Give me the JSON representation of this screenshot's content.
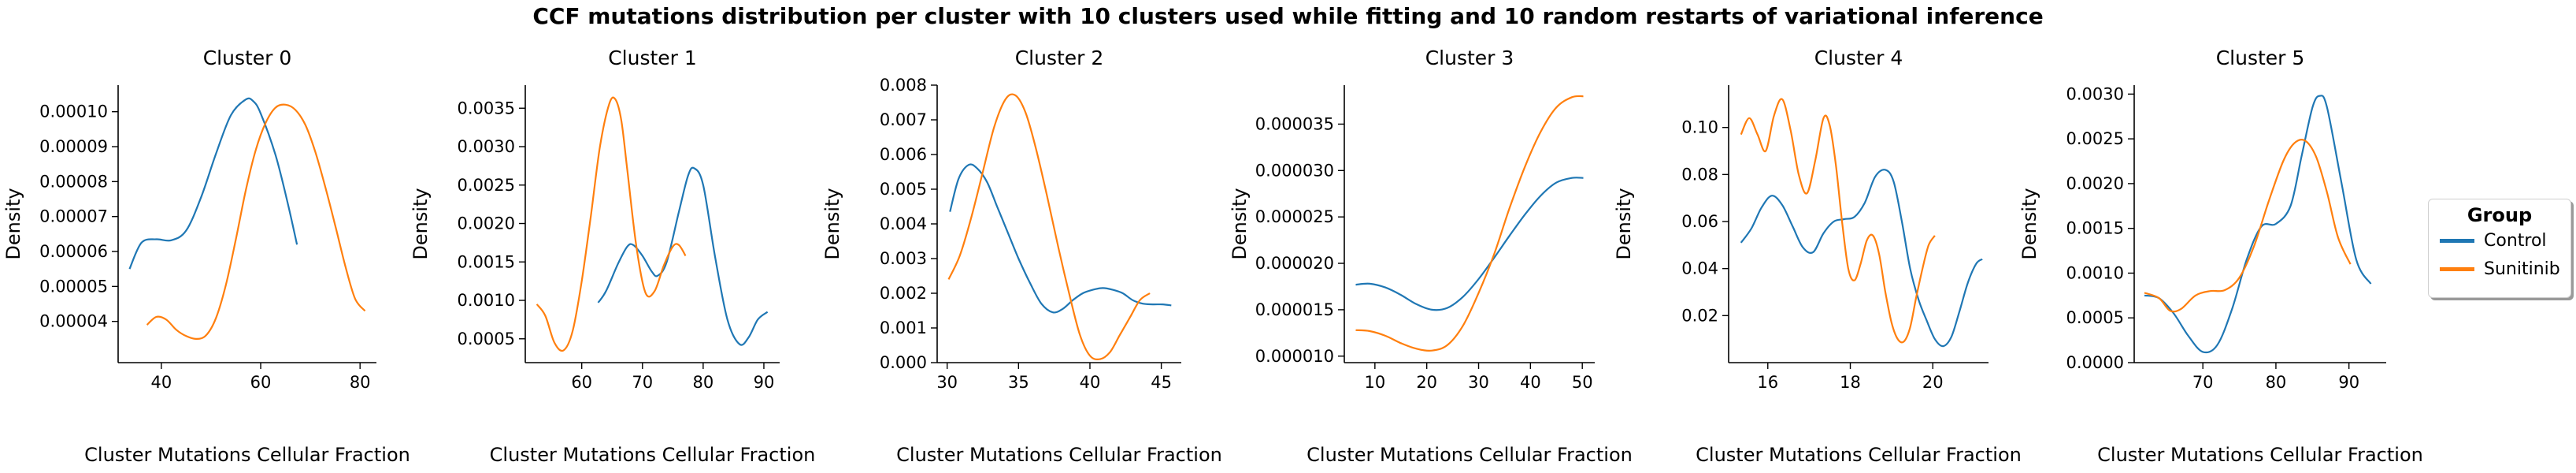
{
  "title": "CCF mutations distribution per cluster with 10 clusters used while fitting and 10 random restarts of variational inference",
  "colors": {
    "control": "#1f77b4",
    "sunitinib": "#ff7f0e"
  },
  "legend": {
    "title": "Group",
    "items": [
      {
        "label": "Control",
        "color": "#1f77b4"
      },
      {
        "label": "Sunitinib",
        "color": "#ff7f0e"
      }
    ]
  },
  "chart_data": [
    {
      "type": "line",
      "title": "Cluster 0",
      "xlabel": "Cluster Mutations Cellular Fraction",
      "ylabel": "Density",
      "xlim": [
        31.3,
        83.3
      ],
      "ylim": [
        2.82e-05,
        0.0001076
      ],
      "xticks": [
        40,
        60,
        80
      ],
      "xtick_labels": [
        "40",
        "60",
        "80"
      ],
      "yticks": [
        4e-05,
        5e-05,
        6e-05,
        7e-05,
        8e-05,
        9e-05,
        0.0001
      ],
      "ytick_labels": [
        "0.00004",
        "0.00005",
        "0.00006",
        "0.00007",
        "0.00008",
        "0.00009",
        "0.00010"
      ],
      "series": [
        {
          "name": "Control",
          "color": "#1f77b4",
          "x": [
            33.6,
            36,
            39,
            42,
            45,
            48,
            51,
            54,
            57,
            58.5,
            60,
            63,
            65.5,
            67.3
          ],
          "y": [
            5.5e-05,
            6.25e-05,
            6.35e-05,
            6.32e-05,
            6.6e-05,
            7.55e-05,
            8.8e-05,
            9.9e-05,
            0.0001035,
            0.000103,
            9.95e-05,
            8.75e-05,
            7.35e-05,
            6.2e-05
          ]
        },
        {
          "name": "Sunitinib",
          "color": "#ff7f0e",
          "x": [
            37.1,
            39,
            41,
            43,
            45,
            47,
            49,
            51,
            53,
            55,
            57,
            59,
            61,
            63,
            65,
            67,
            69,
            71,
            73,
            75,
            77,
            79,
            81
          ],
          "y": [
            3.9e-05,
            4.13e-05,
            4.05e-05,
            3.76e-05,
            3.58e-05,
            3.5e-05,
            3.6e-05,
            4.1e-05,
            5.05e-05,
            6.35e-05,
            7.75e-05,
            8.9e-05,
            9.68e-05,
            0.0001012,
            0.000102,
            0.0001005,
            9.62e-05,
            8.85e-05,
            7.85e-05,
            6.75e-05,
            5.6e-05,
            4.65e-05,
            4.3e-05
          ]
        }
      ]
    },
    {
      "type": "line",
      "title": "Cluster 1",
      "xlabel": "Cluster Mutations Cellular Fraction",
      "ylabel": "Density",
      "xlim": [
        50.7,
        92.6
      ],
      "ylim": [
        0.00019,
        0.0038
      ],
      "xticks": [
        60,
        70,
        80,
        90
      ],
      "xtick_labels": [
        "60",
        "70",
        "80",
        "90"
      ],
      "yticks": [
        0.0005,
        0.001,
        0.0015,
        0.002,
        0.0025,
        0.003,
        0.0035
      ],
      "ytick_labels": [
        "0.0005",
        "0.0010",
        "0.0015",
        "0.0020",
        "0.0025",
        "0.0030",
        "0.0035"
      ],
      "series": [
        {
          "name": "Control",
          "color": "#1f77b4",
          "x": [
            62.7,
            64,
            66,
            67.5,
            68.5,
            70,
            71.5,
            72.5,
            74,
            76,
            77.5,
            78.5,
            80,
            82,
            84,
            86,
            87.5,
            89,
            90.6
          ],
          "y": [
            0.00097,
            0.00112,
            0.00148,
            0.0017,
            0.00172,
            0.00158,
            0.00138,
            0.00132,
            0.0015,
            0.00215,
            0.00262,
            0.00272,
            0.0025,
            0.00155,
            0.00075,
            0.00043,
            0.00052,
            0.00075,
            0.00085
          ]
        },
        {
          "name": "Sunitinib",
          "color": "#ff7f0e",
          "x": [
            52.6,
            54,
            55.5,
            57,
            58.5,
            60,
            61.5,
            63,
            64.5,
            65.5,
            66.5,
            67.5,
            69,
            70.5,
            72,
            73.5,
            75,
            76,
            77.1
          ],
          "y": [
            0.00095,
            0.0008,
            0.00045,
            0.00035,
            0.0006,
            0.00125,
            0.0021,
            0.003,
            0.00355,
            0.00362,
            0.00335,
            0.0027,
            0.0017,
            0.0011,
            0.00112,
            0.00145,
            0.0017,
            0.00172,
            0.00158
          ]
        }
      ]
    },
    {
      "type": "line",
      "title": "Cluster 2",
      "xlabel": "Cluster Mutations Cellular Fraction",
      "ylabel": "Density",
      "xlim": [
        29.3,
        46.4
      ],
      "ylim": [
        0,
        0.008
      ],
      "xticks": [
        30,
        35,
        40,
        45
      ],
      "xtick_labels": [
        "30",
        "35",
        "40",
        "45"
      ],
      "yticks": [
        0,
        0.001,
        0.002,
        0.003,
        0.004,
        0.005,
        0.006,
        0.007,
        0.008
      ],
      "ytick_labels": [
        "0.000",
        "0.001",
        "0.002",
        "0.003",
        "0.004",
        "0.005",
        "0.006",
        "0.007",
        "0.008"
      ],
      "series": [
        {
          "name": "Control",
          "color": "#1f77b4",
          "x": [
            30.2,
            30.8,
            31.5,
            32.1,
            32.8,
            33.5,
            34.2,
            35,
            35.8,
            36.6,
            37.4,
            38.1,
            38.8,
            39.5,
            40.2,
            40.9,
            41.6,
            42.3,
            43,
            43.7,
            44.4,
            45.1,
            45.7
          ],
          "y": [
            0.00435,
            0.0053,
            0.0057,
            0.0056,
            0.0052,
            0.0045,
            0.0038,
            0.003,
            0.0023,
            0.0017,
            0.00145,
            0.00155,
            0.0018,
            0.002,
            0.0021,
            0.00215,
            0.0021,
            0.002,
            0.0018,
            0.0017,
            0.00168,
            0.00168,
            0.00165
          ]
        },
        {
          "name": "Sunitinib",
          "color": "#ff7f0e",
          "x": [
            30.1,
            30.9,
            31.7,
            32.5,
            33.3,
            34.1,
            34.8,
            35.5,
            36.2,
            37,
            37.8,
            38.6,
            39.3,
            40,
            40.7,
            41.4,
            42.1,
            42.8,
            43.5,
            44.2
          ],
          "y": [
            0.0024,
            0.0031,
            0.0042,
            0.0055,
            0.0068,
            0.0076,
            0.0077,
            0.0072,
            0.0062,
            0.0048,
            0.0033,
            0.0019,
            0.0008,
            0.0002,
            0.0001,
            0.0003,
            0.0008,
            0.0013,
            0.0018,
            0.002
          ]
        }
      ]
    },
    {
      "type": "line",
      "title": "Cluster 3",
      "xlabel": "Cluster Mutations Cellular Fraction",
      "ylabel": "Density",
      "xlim": [
        4.1,
        52.4
      ],
      "ylim": [
        9.3e-06,
        3.92e-05
      ],
      "xticks": [
        10,
        20,
        30,
        40,
        50
      ],
      "xtick_labels": [
        "10",
        "20",
        "30",
        "40",
        "50"
      ],
      "yticks": [
        1e-05,
        1.5e-05,
        2e-05,
        2.5e-05,
        3e-05,
        3.5e-05
      ],
      "ytick_labels": [
        "0.000010",
        "0.000015",
        "0.000020",
        "0.000025",
        "0.000030",
        "0.000035"
      ],
      "series": [
        {
          "name": "Control",
          "color": "#1f77b4",
          "x": [
            6.3,
            9,
            12,
            15,
            18,
            21,
            24,
            27,
            30,
            33,
            36,
            39,
            42,
            45,
            48,
            50.2
          ],
          "y": [
            1.77e-05,
            1.78e-05,
            1.74e-05,
            1.66e-05,
            1.56e-05,
            1.5e-05,
            1.52e-05,
            1.64e-05,
            1.83e-05,
            2.06e-05,
            2.3e-05,
            2.53e-05,
            2.73e-05,
            2.87e-05,
            2.92e-05,
            2.92e-05
          ]
        },
        {
          "name": "Sunitinib",
          "color": "#ff7f0e",
          "x": [
            6.3,
            9,
            12,
            15,
            18,
            21,
            24,
            27,
            30,
            33,
            36,
            39,
            42,
            45,
            48,
            50.2
          ],
          "y": [
            1.28e-05,
            1.27e-05,
            1.22e-05,
            1.14e-05,
            1.08e-05,
            1.06e-05,
            1.12e-05,
            1.33e-05,
            1.68e-05,
            2.1e-05,
            2.6e-05,
            3.05e-05,
            3.42e-05,
            3.68e-05,
            3.79e-05,
            3.8e-05
          ]
        }
      ]
    },
    {
      "type": "line",
      "title": "Cluster 4",
      "xlabel": "Cluster Mutations Cellular Fraction",
      "ylabel": "Density",
      "xlim": [
        15.05,
        21.35
      ],
      "ylim": [
        0.0,
        0.118
      ],
      "xticks": [
        16,
        18,
        20
      ],
      "xtick_labels": [
        "16",
        "18",
        "20"
      ],
      "yticks": [
        0.02,
        0.04,
        0.06,
        0.08,
        0.1
      ],
      "ytick_labels": [
        "0.02",
        "0.04",
        "0.06",
        "0.08",
        "0.10"
      ],
      "series": [
        {
          "name": "Control",
          "color": "#1f77b4",
          "x": [
            15.35,
            15.6,
            15.85,
            16.1,
            16.35,
            16.6,
            16.85,
            17.1,
            17.35,
            17.6,
            17.85,
            18.1,
            18.35,
            18.6,
            18.85,
            19.05,
            19.25,
            19.45,
            19.65,
            19.85,
            20.05,
            20.25,
            20.45,
            20.65,
            20.85,
            21.05,
            21.2
          ],
          "y": [
            0.051,
            0.057,
            0.066,
            0.071,
            0.067,
            0.058,
            0.049,
            0.047,
            0.055,
            0.06,
            0.061,
            0.062,
            0.068,
            0.079,
            0.082,
            0.077,
            0.06,
            0.04,
            0.027,
            0.018,
            0.01,
            0.007,
            0.011,
            0.022,
            0.034,
            0.042,
            0.044
          ]
        },
        {
          "name": "Sunitinib",
          "color": "#ff7f0e",
          "x": [
            15.35,
            15.55,
            15.75,
            15.95,
            16.15,
            16.35,
            16.55,
            16.75,
            16.95,
            17.15,
            17.35,
            17.5,
            17.65,
            17.8,
            17.95,
            18.1,
            18.25,
            18.4,
            18.55,
            18.7,
            18.85,
            19,
            19.15,
            19.3,
            19.45,
            19.6,
            19.75,
            19.9,
            20.05
          ],
          "y": [
            0.097,
            0.104,
            0.097,
            0.09,
            0.105,
            0.112,
            0.099,
            0.08,
            0.072,
            0.086,
            0.104,
            0.101,
            0.084,
            0.06,
            0.04,
            0.035,
            0.042,
            0.052,
            0.054,
            0.046,
            0.03,
            0.017,
            0.01,
            0.009,
            0.015,
            0.028,
            0.04,
            0.05,
            0.054
          ]
        }
      ]
    },
    {
      "type": "line",
      "title": "Cluster 5",
      "xlabel": "Cluster Mutations Cellular Fraction",
      "ylabel": "Density",
      "xlim": [
        60.6,
        95.1
      ],
      "ylim": [
        0,
        0.0031
      ],
      "xticks": [
        70,
        80,
        90
      ],
      "xtick_labels": [
        "70",
        "80",
        "90"
      ],
      "yticks": [
        0,
        0.0005,
        0.001,
        0.0015,
        0.002,
        0.0025,
        0.003
      ],
      "ytick_labels": [
        "0.0000",
        "0.0005",
        "0.0010",
        "0.0015",
        "0.0020",
        "0.0025",
        "0.0030"
      ],
      "series": [
        {
          "name": "Control",
          "color": "#1f77b4",
          "x": [
            62,
            64,
            66,
            68,
            70,
            72,
            74,
            76,
            78,
            80,
            82,
            83.5,
            85,
            86,
            87,
            89,
            91,
            93
          ],
          "y": [
            0.00075,
            0.00072,
            0.00055,
            0.0003,
            0.00012,
            0.0002,
            0.0006,
            0.00115,
            0.00152,
            0.00155,
            0.00175,
            0.0023,
            0.00285,
            0.00298,
            0.00285,
            0.002,
            0.00115,
            0.00088
          ]
        },
        {
          "name": "Sunitinib",
          "color": "#ff7f0e",
          "x": [
            62,
            64,
            65.5,
            67,
            69,
            71,
            73,
            75,
            77,
            79,
            81,
            82.5,
            84,
            85.5,
            87,
            88.5,
            90.2
          ],
          "y": [
            0.00078,
            0.00072,
            0.00058,
            0.0006,
            0.00075,
            0.0008,
            0.00081,
            0.00095,
            0.0013,
            0.0018,
            0.00225,
            0.00245,
            0.00248,
            0.0023,
            0.0019,
            0.0014,
            0.0011
          ]
        }
      ]
    }
  ]
}
